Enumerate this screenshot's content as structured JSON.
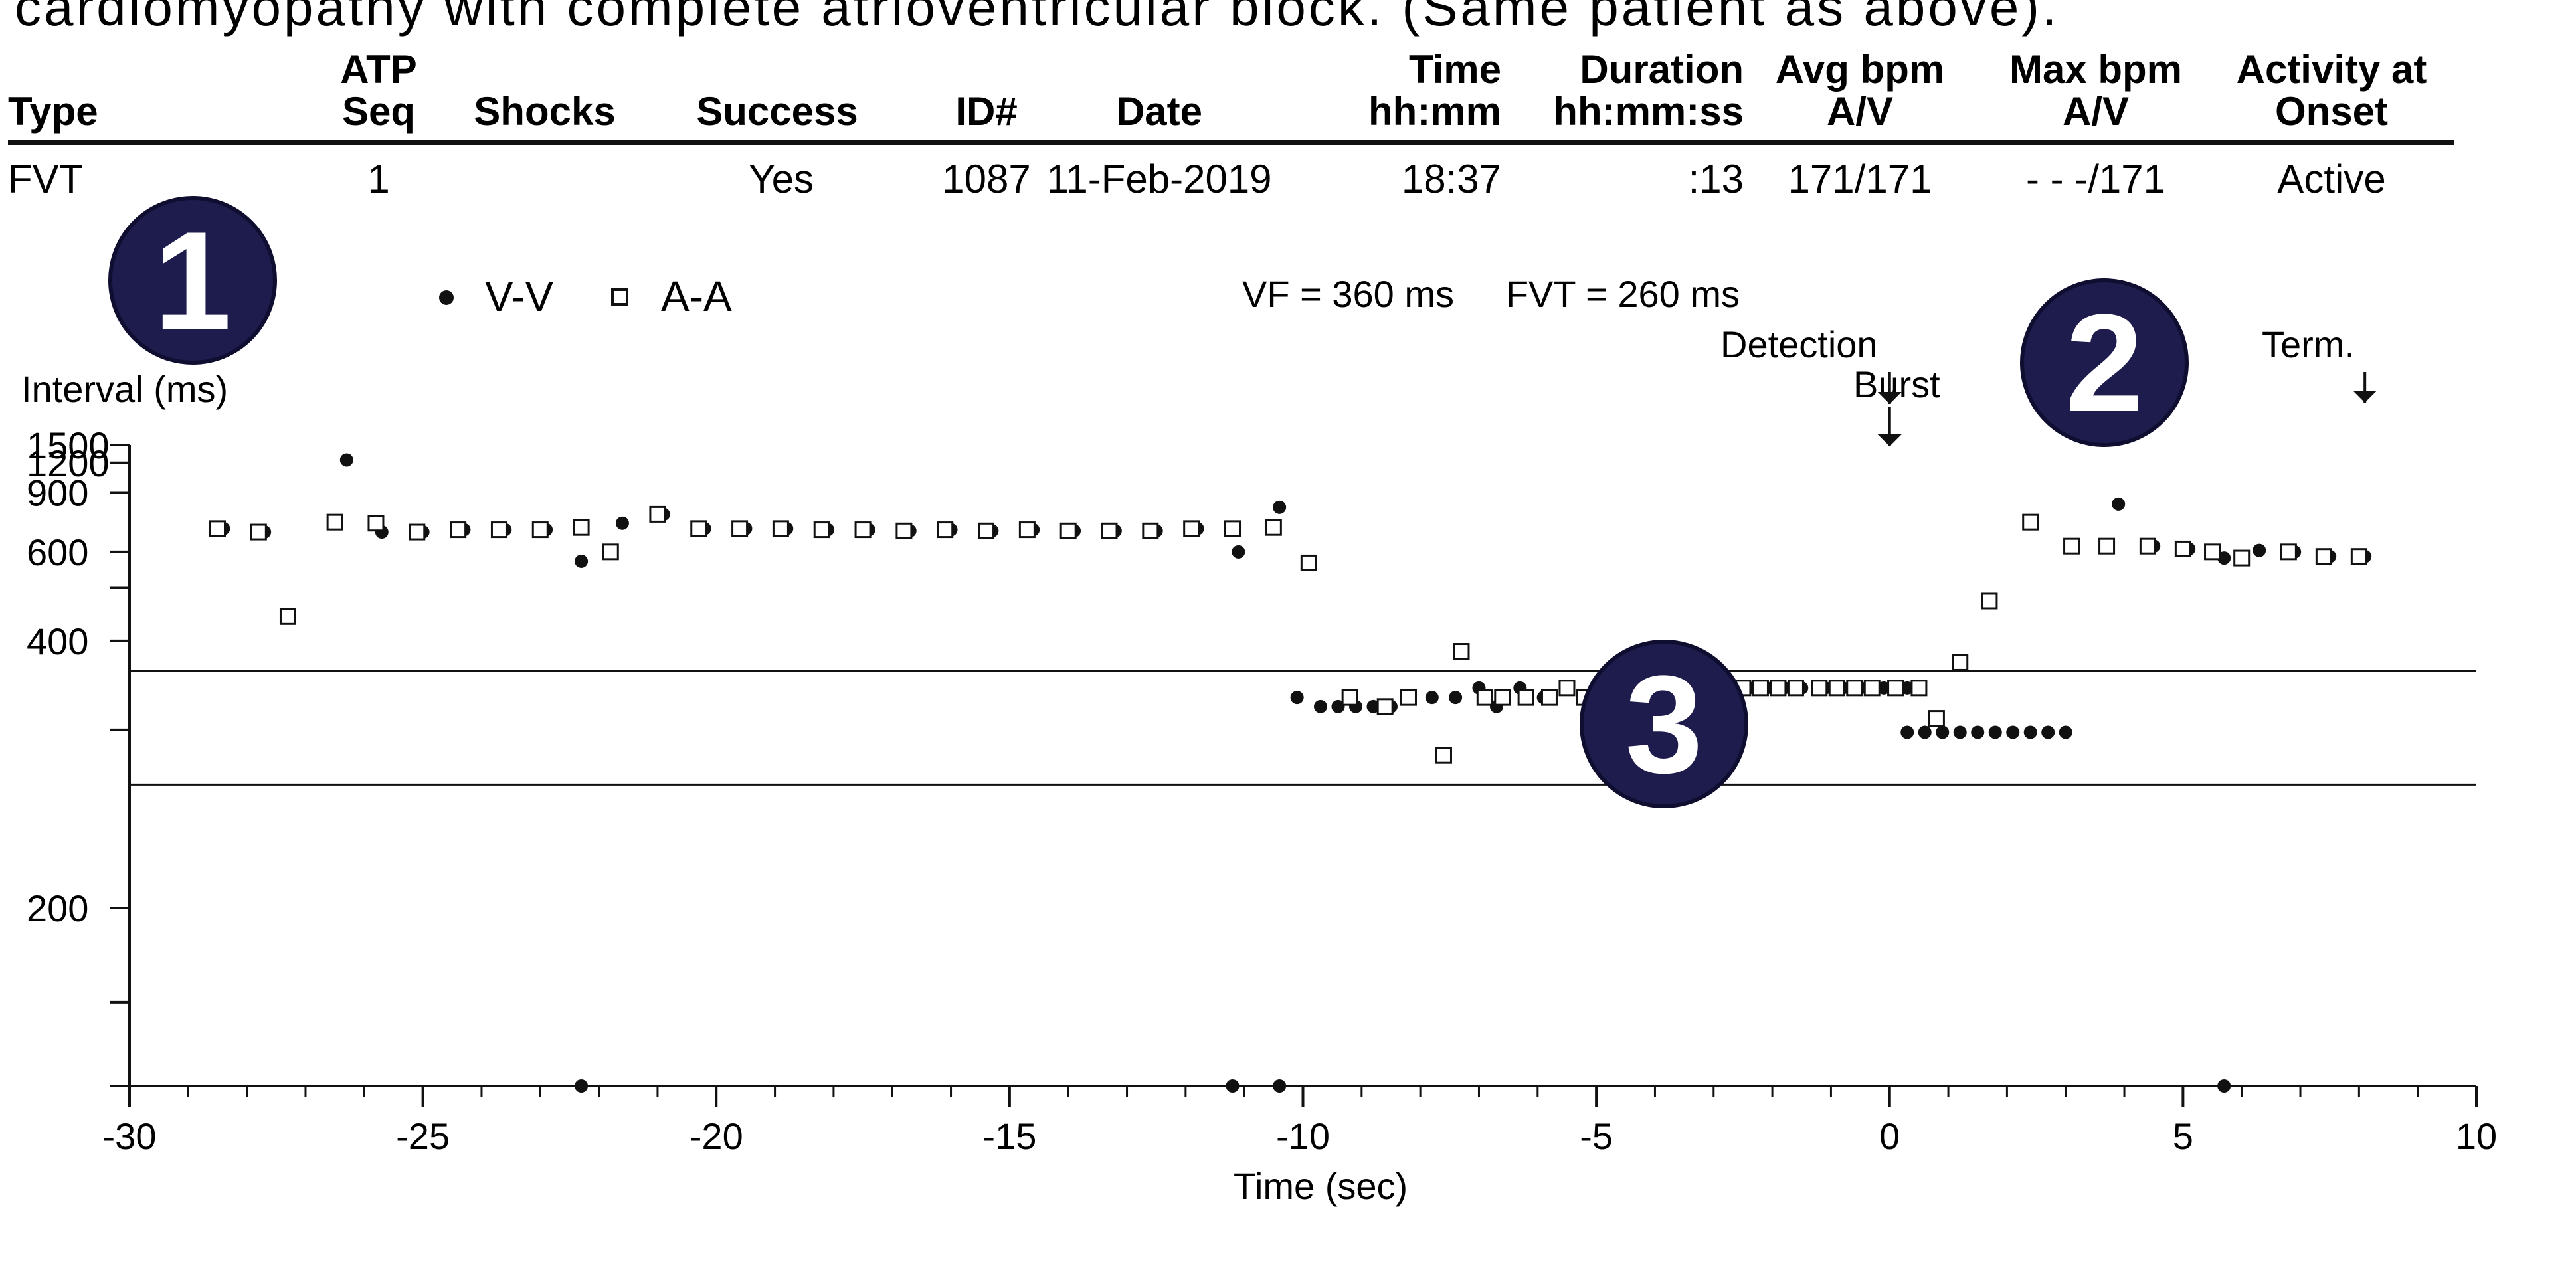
{
  "caption": "cardiomyopathy with complete atrioventricular block. (Same patient as above).",
  "table": {
    "headers": [
      {
        "line1": "",
        "line2": "Type"
      },
      {
        "line1": "ATP",
        "line2": "Seq"
      },
      {
        "line1": "",
        "line2": "Shocks"
      },
      {
        "line1": "",
        "line2": "Success"
      },
      {
        "line1": "",
        "line2": "ID#"
      },
      {
        "line1": "",
        "line2": "Date"
      },
      {
        "line1": "Time",
        "line2": "hh:mm"
      },
      {
        "line1": "Duration",
        "line2": "hh:mm:ss"
      },
      {
        "line1": "Avg bpm",
        "line2": "A/V"
      },
      {
        "line1": "Max bpm",
        "line2": "A/V"
      },
      {
        "line1": "Activity at",
        "line2": "Onset"
      }
    ],
    "row": [
      "FVT",
      "1",
      "",
      "Yes",
      "1087",
      "11-Feb-2019",
      "18:37",
      ":13",
      "171/171",
      "- - -/171",
      "Active"
    ]
  },
  "badges": [
    "1",
    "2",
    "3"
  ],
  "annotations": {
    "zones": "VF = 360 ms     FVT = 260 ms",
    "detection": "Detection",
    "burst": "Burst",
    "term": "Term."
  },
  "chart_data": {
    "type": "scatter",
    "title": "",
    "xlabel": "Time (sec)",
    "ylabel": "Interval (ms)",
    "xlim": [
      -30,
      10
    ],
    "ylim": [
      150,
      1500
    ],
    "y_scale": "reciprocal",
    "x_ticks": [
      -30,
      -25,
      -20,
      -15,
      -10,
      -5,
      0,
      5,
      10
    ],
    "y_ticks": [
      200,
      400,
      600,
      900,
      1200,
      1500
    ],
    "grid": false,
    "legend": "top-left",
    "zone_lines": [
      360,
      260
    ],
    "series": [
      {
        "name": "V-V",
        "marker": "filled-circle",
        "points": [
          [
            -28.4,
            690
          ],
          [
            -27.7,
            675
          ],
          [
            -26.3,
            1240
          ],
          [
            -25.7,
            675
          ],
          [
            -25.0,
            675
          ],
          [
            -24.3,
            685
          ],
          [
            -23.6,
            685
          ],
          [
            -22.9,
            685
          ],
          [
            -22.3,
            570
          ],
          [
            -21.6,
            715
          ],
          [
            -20.9,
            760
          ],
          [
            -20.2,
            690
          ],
          [
            -19.5,
            690
          ],
          [
            -18.8,
            690
          ],
          [
            -18.1,
            685
          ],
          [
            -17.4,
            685
          ],
          [
            -16.7,
            680
          ],
          [
            -16.0,
            685
          ],
          [
            -15.3,
            680
          ],
          [
            -14.6,
            685
          ],
          [
            -13.9,
            680
          ],
          [
            -13.2,
            680
          ],
          [
            -12.5,
            680
          ],
          [
            -11.8,
            690
          ],
          [
            -11.1,
            600
          ],
          [
            -10.4,
            800
          ],
          [
            -10.1,
            330
          ],
          [
            -9.7,
            321
          ],
          [
            -9.4,
            321
          ],
          [
            -9.1,
            321
          ],
          [
            -8.8,
            321
          ],
          [
            -8.5,
            321
          ],
          [
            -8.2,
            330
          ],
          [
            -7.8,
            330
          ],
          [
            -7.4,
            330
          ],
          [
            -7.0,
            340
          ],
          [
            -6.7,
            321
          ],
          [
            -6.3,
            340
          ],
          [
            -5.9,
            330
          ],
          [
            -5.5,
            340
          ],
          [
            -5.1,
            330
          ],
          [
            -4.7,
            340
          ],
          [
            -4.3,
            340
          ],
          [
            -3.9,
            330
          ],
          [
            -3.5,
            340
          ],
          [
            -3.1,
            330
          ],
          [
            -2.8,
            340
          ],
          [
            -2.4,
            340
          ],
          [
            -2.1,
            340
          ],
          [
            -1.8,
            340
          ],
          [
            -1.5,
            340
          ],
          [
            -1.1,
            340
          ],
          [
            -0.8,
            340
          ],
          [
            -0.5,
            340
          ],
          [
            -0.1,
            340
          ],
          [
            0.3,
            340
          ],
          [
            0.3,
            298
          ],
          [
            0.6,
            298
          ],
          [
            0.9,
            298
          ],
          [
            1.2,
            298
          ],
          [
            1.5,
            298
          ],
          [
            1.8,
            298
          ],
          [
            2.1,
            298
          ],
          [
            2.4,
            298
          ],
          [
            2.7,
            298
          ],
          [
            3.0,
            298
          ],
          [
            3.9,
            820
          ],
          [
            4.5,
            620
          ],
          [
            5.1,
            610
          ],
          [
            5.7,
            580
          ],
          [
            6.3,
            605
          ],
          [
            6.9,
            600
          ],
          [
            7.5,
            585
          ],
          [
            8.1,
            585
          ],
          [
            -22.3,
            150
          ],
          [
            -11.2,
            150
          ],
          [
            -10.4,
            150
          ],
          [
            5.7,
            150
          ]
        ]
      },
      {
        "name": "A-A",
        "marker": "open-square",
        "points": [
          [
            -28.5,
            690
          ],
          [
            -27.8,
            675
          ],
          [
            -27.3,
            440
          ],
          [
            -26.5,
            720
          ],
          [
            -25.8,
            715
          ],
          [
            -25.1,
            675
          ],
          [
            -24.4,
            685
          ],
          [
            -23.7,
            685
          ],
          [
            -23.0,
            685
          ],
          [
            -22.3,
            695
          ],
          [
            -21.8,
            600
          ],
          [
            -21.0,
            760
          ],
          [
            -20.3,
            690
          ],
          [
            -19.6,
            690
          ],
          [
            -18.9,
            690
          ],
          [
            -18.2,
            685
          ],
          [
            -17.5,
            685
          ],
          [
            -16.8,
            680
          ],
          [
            -16.1,
            685
          ],
          [
            -15.4,
            680
          ],
          [
            -14.7,
            685
          ],
          [
            -14.0,
            680
          ],
          [
            -13.3,
            680
          ],
          [
            -12.6,
            680
          ],
          [
            -11.9,
            690
          ],
          [
            -11.2,
            690
          ],
          [
            -10.5,
            695
          ],
          [
            -9.9,
            565
          ],
          [
            -9.2,
            330
          ],
          [
            -8.6,
            321
          ],
          [
            -8.2,
            330
          ],
          [
            -7.6,
            280
          ],
          [
            -7.3,
            385
          ],
          [
            -6.9,
            330
          ],
          [
            -6.6,
            330
          ],
          [
            -6.2,
            330
          ],
          [
            -5.8,
            330
          ],
          [
            -5.5,
            340
          ],
          [
            -5.2,
            330
          ],
          [
            -4.8,
            340
          ],
          [
            -4.4,
            340
          ],
          [
            -4.0,
            340
          ],
          [
            -3.6,
            340
          ],
          [
            -3.2,
            340
          ],
          [
            -2.9,
            340
          ],
          [
            -2.5,
            340
          ],
          [
            -2.2,
            340
          ],
          [
            -1.9,
            340
          ],
          [
            -1.6,
            340
          ],
          [
            -1.2,
            340
          ],
          [
            -0.9,
            340
          ],
          [
            -0.6,
            340
          ],
          [
            -0.3,
            340
          ],
          [
            0.1,
            340
          ],
          [
            0.5,
            340
          ],
          [
            0.8,
            310
          ],
          [
            1.2,
            370
          ],
          [
            1.7,
            470
          ],
          [
            2.4,
            720
          ],
          [
            3.1,
            620
          ],
          [
            3.7,
            620
          ],
          [
            4.4,
            620
          ],
          [
            5.0,
            610
          ],
          [
            5.5,
            600
          ],
          [
            6.0,
            580
          ],
          [
            6.8,
            600
          ],
          [
            7.4,
            585
          ],
          [
            8.0,
            585
          ]
        ]
      }
    ],
    "markers": [
      {
        "label": "Detection",
        "x": 0.0
      },
      {
        "label": "Burst",
        "x": 0.0
      },
      {
        "label": "Term.",
        "x": 8.1
      }
    ]
  }
}
